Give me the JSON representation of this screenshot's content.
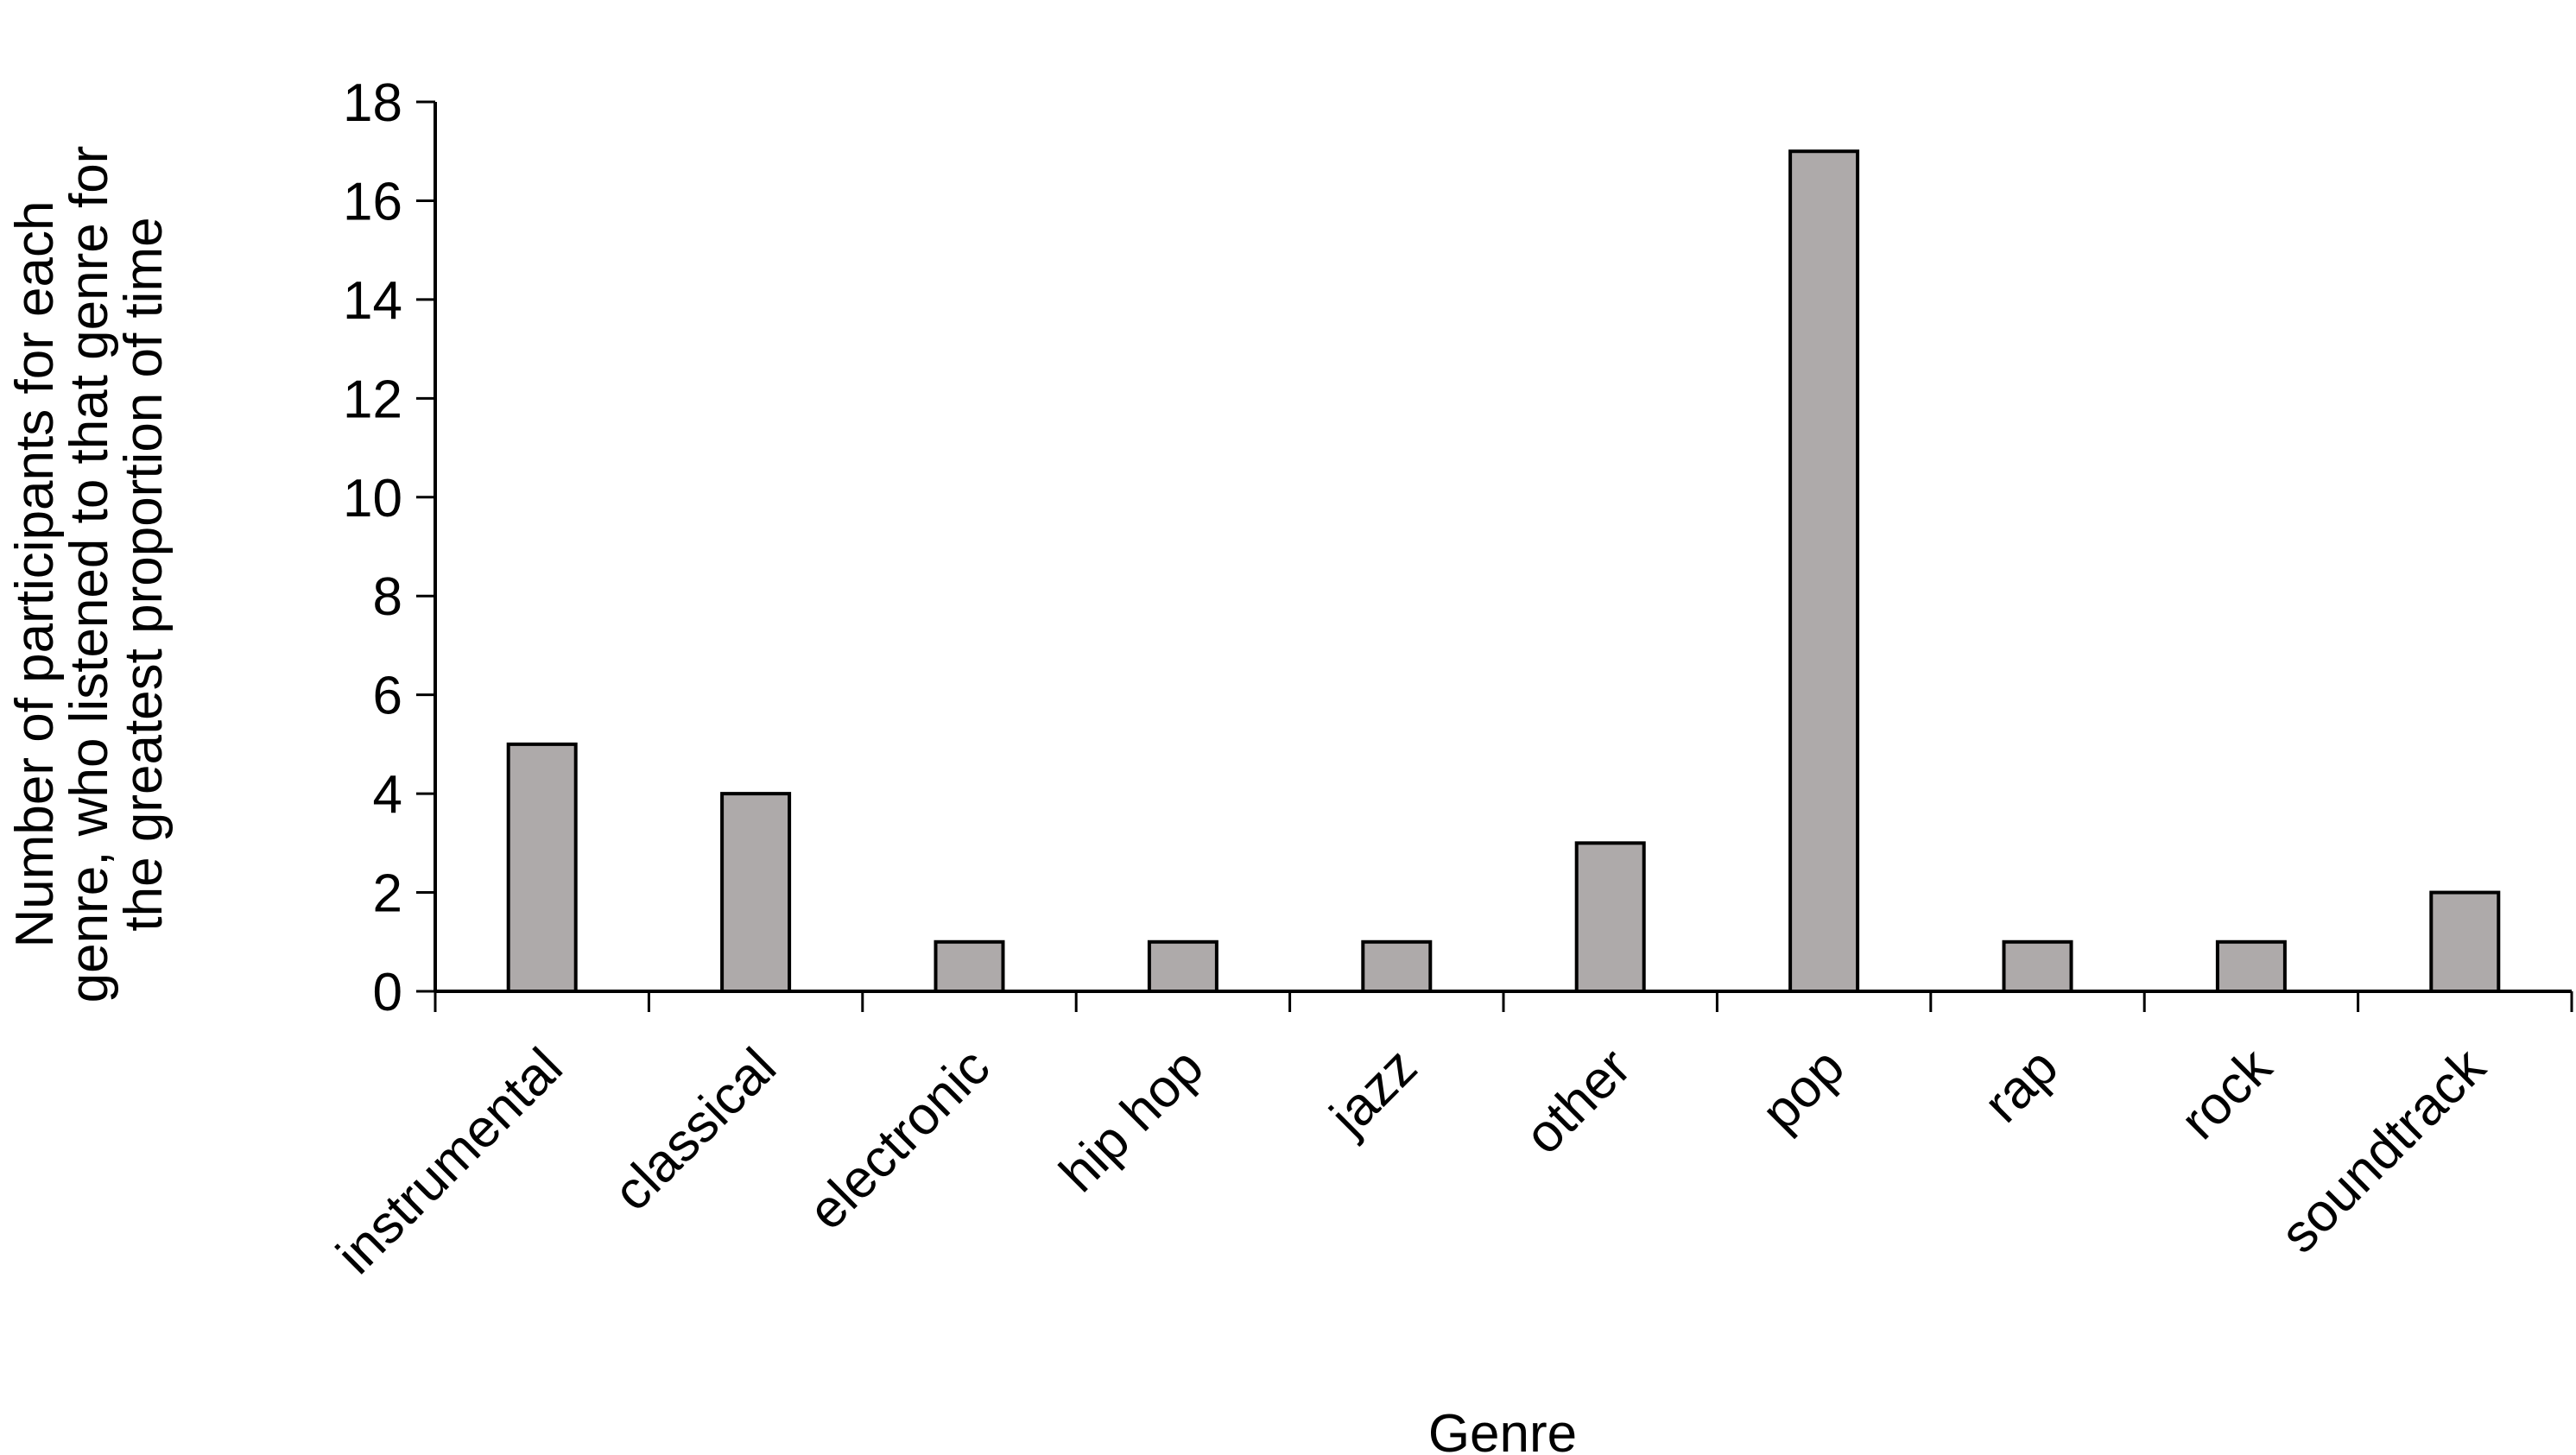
{
  "chart_data": {
    "type": "bar",
    "categories": [
      "instrumental",
      "classical",
      "electronic",
      "hip hop",
      "jazz",
      "other",
      "pop",
      "rap",
      "rock",
      "soundtrack"
    ],
    "values": [
      5,
      4,
      1,
      1,
      1,
      3,
      17,
      1,
      1,
      2
    ],
    "xlabel": "Genre",
    "ylabel_lines": [
      "Number of participants for each",
      "genre, who listened to that genre for",
      "the greatest proportion of time"
    ],
    "ylim": [
      0,
      18
    ],
    "yticks": [
      0,
      2,
      4,
      6,
      8,
      10,
      12,
      14,
      16,
      18
    ],
    "grid": false,
    "legend": "none",
    "colors": {
      "bar_fill": "#aeaaaa",
      "bar_stroke": "#000000",
      "axis": "#000000",
      "text": "#000000"
    }
  }
}
